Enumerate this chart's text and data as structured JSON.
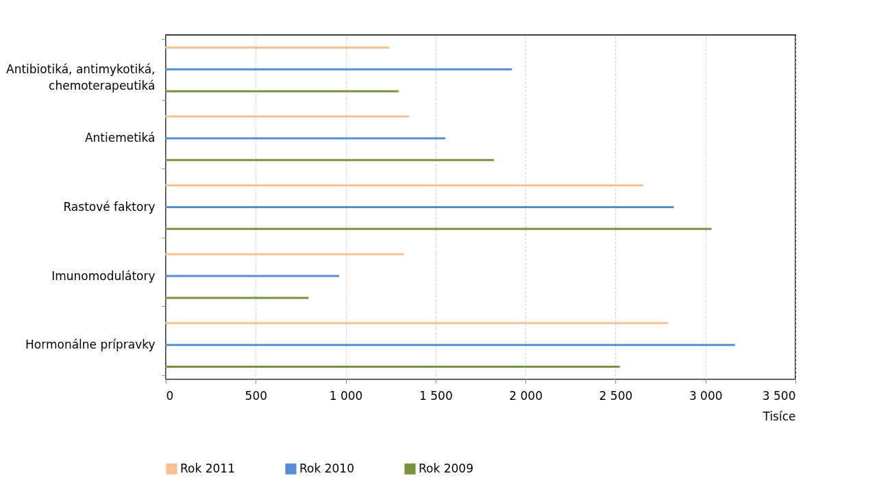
{
  "chart_data": {
    "type": "bar",
    "orientation": "horizontal",
    "xlabel": "Tisíce",
    "categories": [
      "Antibiotiká, antimykotiká, chemoterapeutiká",
      "Antiemetiká",
      "Rastové faktory",
      "Imunomodulátory",
      "Hormonálne prípravky"
    ],
    "series": [
      {
        "name": "Rok 2011",
        "color": "#fac090",
        "values": [
          1240,
          1350,
          2650,
          1320,
          2790
        ]
      },
      {
        "name": "Rok 2010",
        "color": "#558ed5",
        "values": [
          1920,
          1550,
          2820,
          960,
          3160
        ]
      },
      {
        "name": "Rok 2009",
        "color": "#77933c",
        "values": [
          1290,
          1820,
          3030,
          790,
          2520
        ]
      }
    ],
    "xlim": [
      0,
      3500
    ],
    "xticks": [
      0,
      500,
      {
        "value": 1000,
        "label": "1 000"
      },
      {
        "value": 1500,
        "label": "1 500"
      },
      {
        "value": 2000,
        "label": "2 000"
      },
      {
        "value": 2500,
        "label": "2 500"
      },
      {
        "value": 3000,
        "label": "3 000"
      },
      {
        "value": 3500,
        "label": "3 500"
      }
    ],
    "grid": "x",
    "legend": "bottom"
  }
}
